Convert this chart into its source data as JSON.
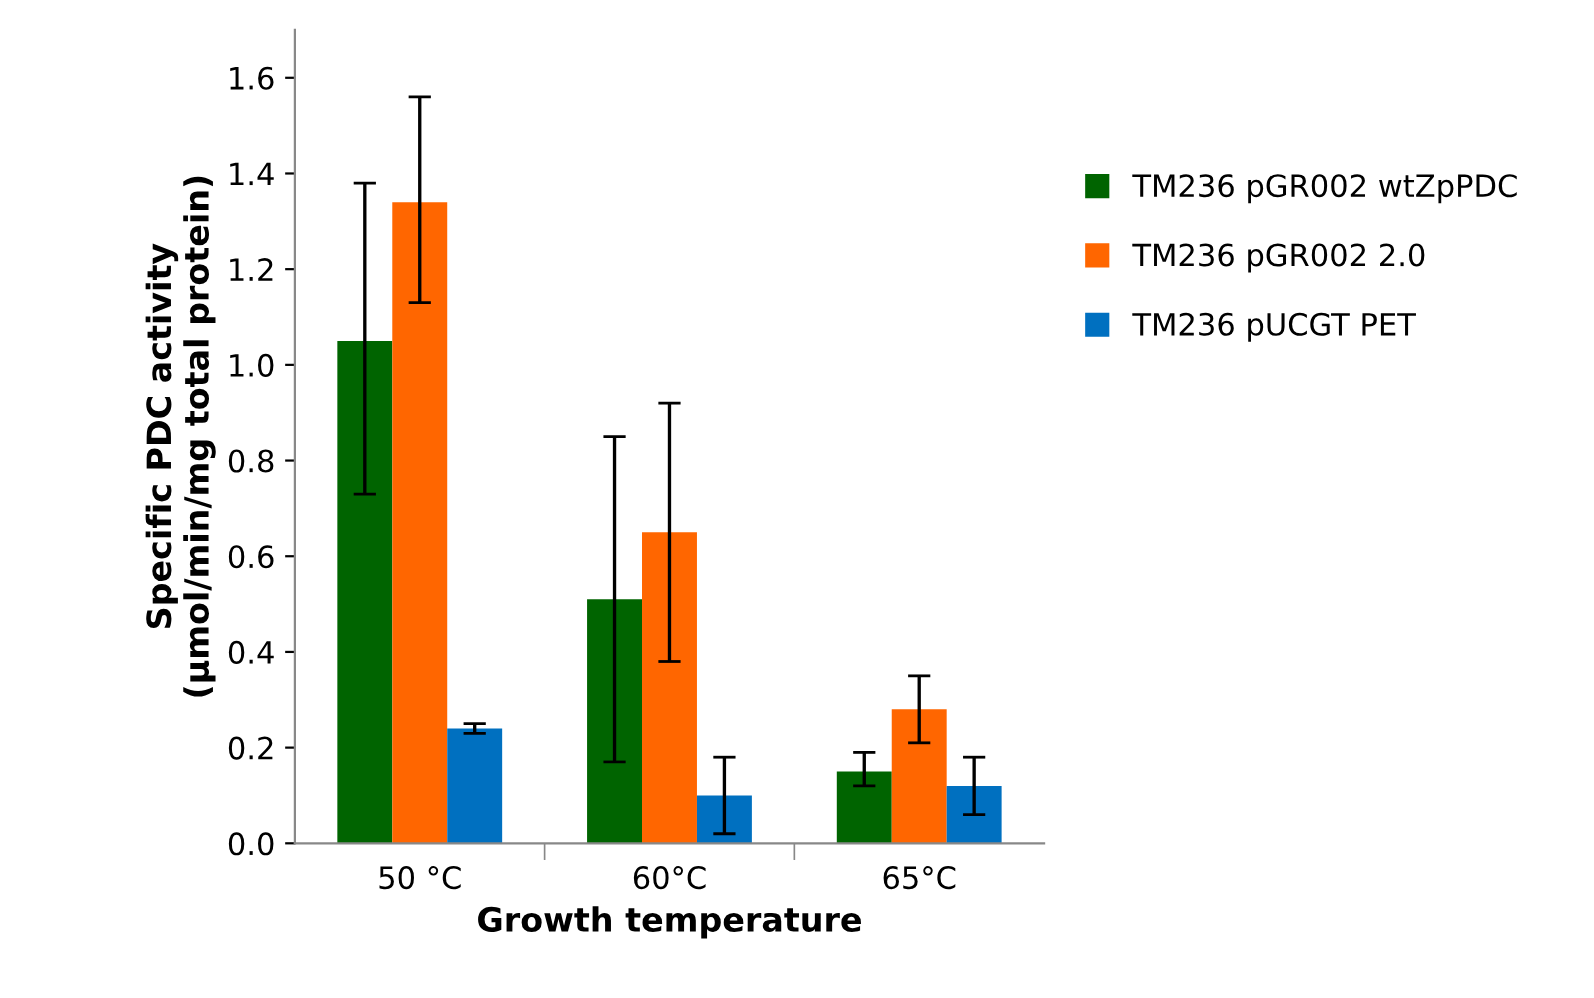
{
  "chart_data": {
    "type": "bar",
    "xlabel": "Growth temperature",
    "ylabel": "Specific PDC activity\n(µmol/min/mg total protein)",
    "categories": [
      "50 °C",
      "60°C",
      "65°C"
    ],
    "series": [
      {
        "name": "TM236 pGR002 wtZpPDC",
        "color": "#006400",
        "values": [
          1.05,
          0.51,
          0.15
        ],
        "errors": [
          [
            0.73,
            1.38
          ],
          [
            0.17,
            0.85
          ],
          [
            0.12,
            0.19
          ]
        ]
      },
      {
        "name": "TM236 pGR002 2.0",
        "color": "#ff6600",
        "values": [
          1.34,
          0.65,
          0.28
        ],
        "errors": [
          [
            1.13,
            1.56
          ],
          [
            0.38,
            0.92
          ],
          [
            0.21,
            0.35
          ]
        ]
      },
      {
        "name": "TM236 pUCGT PET",
        "color": "#0070c0",
        "values": [
          0.24,
          0.1,
          0.12
        ],
        "errors": [
          [
            0.23,
            0.25
          ],
          [
            0.02,
            0.18
          ],
          [
            0.06,
            0.18
          ]
        ]
      }
    ],
    "ylim": [
      0,
      1.7
    ],
    "yticks": [
      {
        "value": 0,
        "label": "0.0"
      },
      0.2,
      0.4,
      0.6,
      0.8,
      {
        "value": 1,
        "label": "1.0"
      },
      1.2,
      1.4,
      1.6
    ],
    "grid": false,
    "legend": "right"
  }
}
